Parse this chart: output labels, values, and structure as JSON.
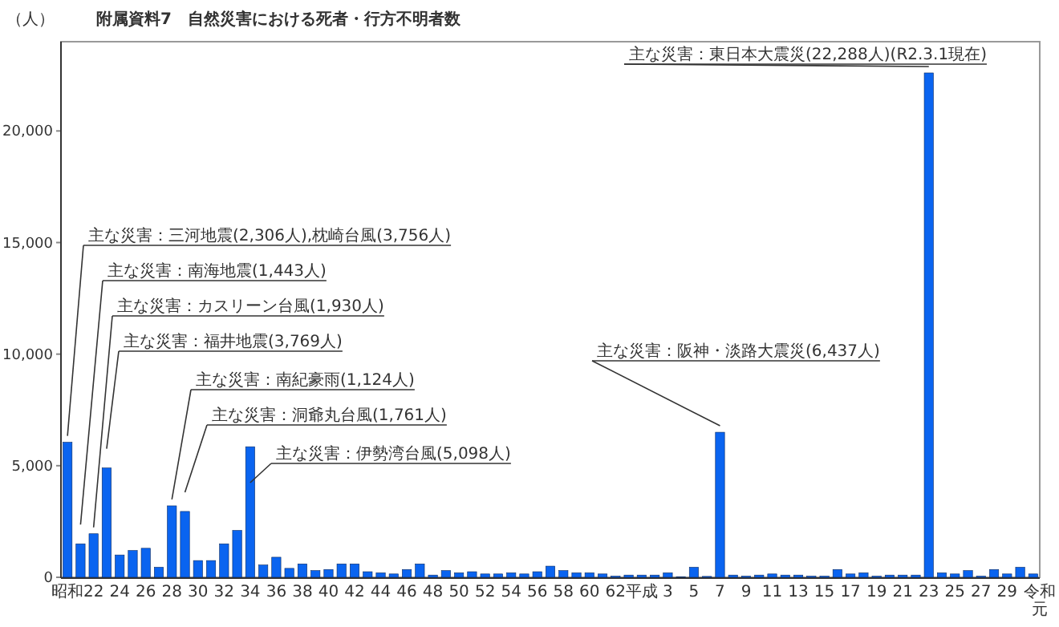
{
  "chart_data": {
    "type": "bar",
    "title": "附属資料7　自然災害における死者・行方不明者数",
    "ylabel": "（人）",
    "categories": [
      "昭和",
      null,
      "22",
      null,
      "24",
      null,
      "26",
      null,
      "28",
      null,
      "30",
      null,
      "32",
      null,
      "34",
      null,
      "36",
      null,
      "38",
      null,
      "40",
      null,
      "42",
      null,
      "44",
      null,
      "46",
      null,
      "48",
      null,
      "50",
      null,
      "52",
      null,
      "54",
      null,
      "56",
      null,
      "58",
      null,
      "60",
      null,
      "62",
      null,
      "平成",
      null,
      "3",
      null,
      "5",
      null,
      "7",
      null,
      "9",
      null,
      "11",
      null,
      "13",
      null,
      "15",
      null,
      "17",
      null,
      "19",
      null,
      "21",
      null,
      "23",
      null,
      "25",
      null,
      "27",
      null,
      "29",
      null,
      "令和元"
    ],
    "series": [
      {
        "color": "#0a64f0",
        "values": [
          6050,
          1500,
          1950,
          4900,
          1000,
          1200,
          1300,
          450,
          3200,
          2950,
          750,
          750,
          1500,
          2100,
          5850,
          550,
          900,
          400,
          600,
          300,
          350,
          600,
          600,
          250,
          200,
          150,
          350,
          600,
          100,
          300,
          200,
          250,
          150,
          150,
          200,
          150,
          250,
          500,
          300,
          200,
          200,
          150,
          50,
          100,
          100,
          100,
          200,
          20,
          450,
          40,
          6500,
          100,
          50,
          100,
          150,
          100,
          100,
          50,
          50,
          350,
          150,
          200,
          50,
          100,
          100,
          100,
          22600,
          200,
          150,
          300,
          50,
          350,
          150,
          450,
          150
        ]
      }
    ],
    "ylim": [
      0,
      24000
    ],
    "yticks": [
      0,
      {
        "value": 5000,
        "label": "5,000"
      },
      {
        "value": 10000,
        "label": "10,000"
      },
      {
        "value": 15000,
        "label": "15,000"
      },
      {
        "value": 20000,
        "label": "20,000"
      }
    ],
    "grid": false,
    "annotations": [
      {
        "text": "主な災害：三河地震(2,306人),枕崎台風(3,756人)",
        "x": "昭和",
        "y": 6050
      },
      "主な災害：南海地震(1,443人)",
      {
        "text": "主な災害：カスリーン台風(1,930人)",
        "x": "22",
        "y": 1950
      },
      "主な災害：福井地震(3,769人)",
      {
        "text": "主な災害：南紀豪雨(1,124人)",
        "x": "28",
        "y": 3200
      },
      "主な災害：洞爺丸台風(1,761人)",
      {
        "text": "主な災害：伊勢湾台風(5,098人)",
        "x": "34",
        "y": 5850
      },
      {
        "text": "主な災害：阪神・淡路大震災(6,437人)",
        "x": "7",
        "y": 6500
      },
      {
        "text": "主な災害：東日本大震災(22,288人)(R2.3.1現在)",
        "x": "23",
        "y": 22600
      }
    ]
  }
}
